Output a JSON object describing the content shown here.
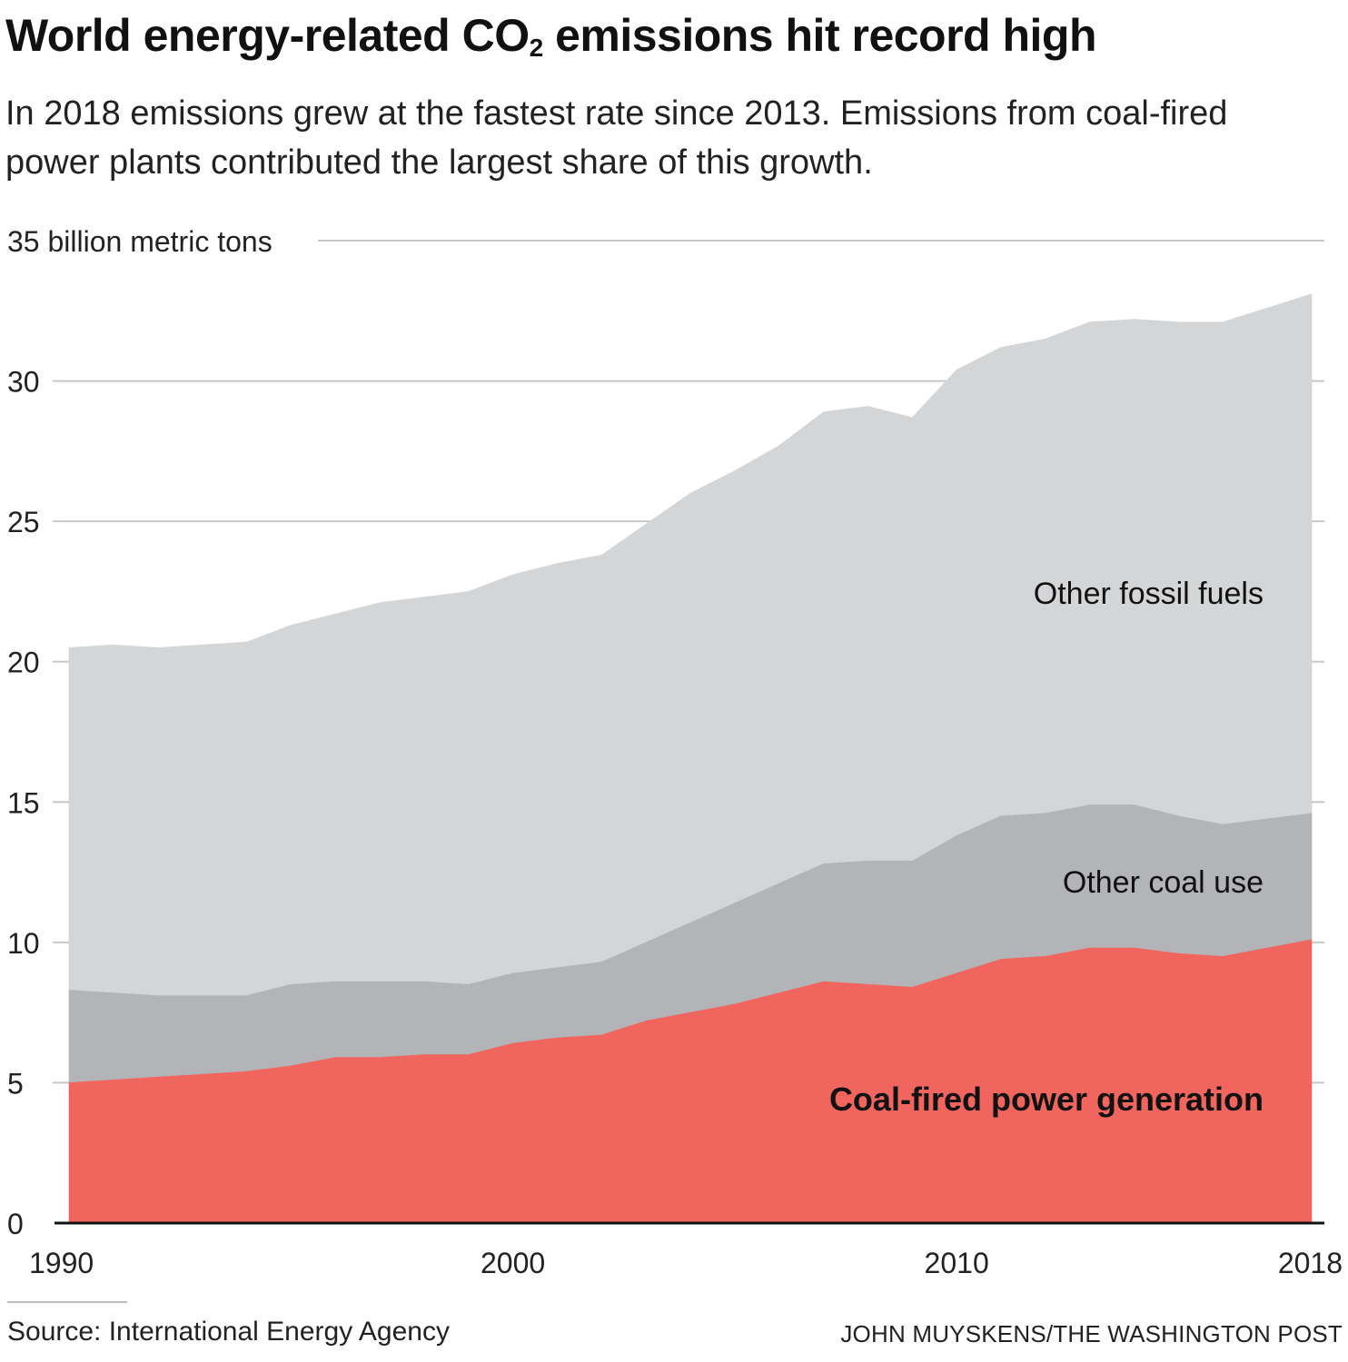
{
  "header": {
    "title_pre": "World energy-related CO",
    "title_sub": "2",
    "title_post": " emissions hit record high",
    "subtitle": "In 2018 emissions grew at the fastest rate since 2013. Emissions from coal-fired power plants contributed the largest share of this growth."
  },
  "footer": {
    "source": "Source: International Energy Agency",
    "credit": "JOHN MUYSKENS/THE WASHINGTON POST"
  },
  "colors": {
    "coal_power": "#f0655e",
    "other_coal": "#b3b4b7",
    "other_fossil": "#d3d5d7",
    "grid": "#c8c8c8",
    "axis": "#111111"
  },
  "chart_data": {
    "type": "area",
    "stacked": true,
    "title": "World energy-related CO2 emissions hit record high",
    "ylabel": "35 billion metric tons",
    "xlabel": "",
    "x": [
      1990,
      1991,
      1992,
      1993,
      1994,
      1995,
      1996,
      1997,
      1998,
      1999,
      2000,
      2001,
      2002,
      2003,
      2004,
      2005,
      2006,
      2007,
      2008,
      2009,
      2010,
      2011,
      2012,
      2013,
      2014,
      2015,
      2016,
      2017,
      2018
    ],
    "xlim": [
      1990,
      2018
    ],
    "ylim": [
      0,
      35
    ],
    "x_ticks": [
      "1990",
      "2000",
      "2010",
      "2018"
    ],
    "x_tick_values": [
      1990,
      2000,
      2010,
      2018
    ],
    "y_ticks": [
      "0",
      "5",
      "10",
      "15",
      "20",
      "25",
      "30",
      "35 billion metric tons"
    ],
    "y_tick_values": [
      0,
      5,
      10,
      15,
      20,
      25,
      30,
      35
    ],
    "grid": true,
    "series": [
      {
        "name": "Coal-fired power generation",
        "values": [
          5.0,
          5.1,
          5.2,
          5.3,
          5.4,
          5.6,
          5.9,
          5.9,
          6.0,
          6.0,
          6.4,
          6.6,
          6.7,
          7.2,
          7.5,
          7.8,
          8.2,
          8.6,
          8.5,
          8.4,
          8.9,
          9.4,
          9.5,
          9.8,
          9.8,
          9.6,
          9.5,
          9.8,
          10.1
        ]
      },
      {
        "name": "Other coal use",
        "values": [
          3.3,
          3.1,
          2.9,
          2.8,
          2.7,
          2.9,
          2.7,
          2.7,
          2.6,
          2.5,
          2.5,
          2.5,
          2.6,
          2.8,
          3.2,
          3.6,
          3.9,
          4.2,
          4.4,
          4.5,
          4.9,
          5.1,
          5.1,
          5.1,
          5.1,
          4.9,
          4.7,
          4.6,
          4.5
        ]
      },
      {
        "name": "Other fossil fuels",
        "values": [
          12.2,
          12.4,
          12.4,
          12.5,
          12.6,
          12.8,
          13.1,
          13.5,
          13.7,
          14.0,
          14.2,
          14.4,
          14.5,
          14.9,
          15.3,
          15.4,
          15.6,
          16.1,
          16.2,
          15.8,
          16.6,
          16.7,
          16.9,
          17.2,
          17.3,
          17.6,
          17.9,
          18.2,
          18.5
        ]
      }
    ],
    "annotations": [
      {
        "text": "Other fossil fuels",
        "series": "Other fossil fuels",
        "bold": false
      },
      {
        "text": "Other coal use",
        "series": "Other coal use",
        "bold": false
      },
      {
        "text": "Coal-fired power generation",
        "series": "Coal-fired power generation",
        "bold": true
      }
    ]
  }
}
